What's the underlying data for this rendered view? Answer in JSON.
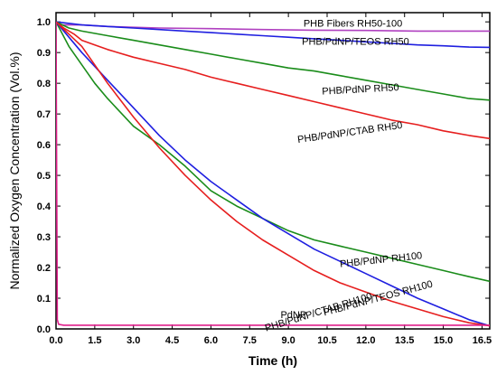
{
  "chart_data": {
    "type": "line",
    "xlabel": "Time (h)",
    "ylabel": "Normalized Oxygen Concentration (Vol.%)",
    "xlim": [
      0,
      16.8
    ],
    "ylim": [
      0,
      1.03
    ],
    "xticks": [
      0,
      1.5,
      3,
      4.5,
      6,
      7.5,
      9,
      10.5,
      12,
      13.5,
      15,
      16.5
    ],
    "xtick_labels": [
      "0.0",
      "1.5",
      "3.0",
      "4.5",
      "6.0",
      "7.5",
      "9.0",
      "10.5",
      "12.0",
      "13.5",
      "15.0",
      "16.5"
    ],
    "yticks": [
      0,
      0.1,
      0.2,
      0.3,
      0.4,
      0.5,
      0.6,
      0.7,
      0.8,
      0.9,
      1.0
    ],
    "ytick_labels": [
      "0.0",
      "0.1",
      "0.2",
      "0.3",
      "0.4",
      "0.5",
      "0.6",
      "0.7",
      "0.8",
      "0.9",
      "1.0"
    ],
    "grid": false,
    "series": [
      {
        "name": "PHB Fibers RH50-100",
        "color": "#b040c0",
        "x": [
          0,
          1,
          2,
          4,
          6,
          8,
          10,
          12,
          14,
          16.8
        ],
        "y": [
          0.99,
          0.99,
          0.985,
          0.98,
          0.978,
          0.975,
          0.973,
          0.972,
          0.97,
          0.97
        ]
      },
      {
        "name": "PHB/PdNP/TEOS RH50",
        "color": "#1f1fe0",
        "x": [
          0,
          1,
          2,
          3,
          4,
          5,
          6,
          7,
          8,
          9,
          10,
          11,
          12,
          13,
          14,
          15,
          16,
          16.8
        ],
        "y": [
          1.0,
          0.99,
          0.985,
          0.98,
          0.975,
          0.97,
          0.965,
          0.96,
          0.955,
          0.95,
          0.945,
          0.94,
          0.935,
          0.93,
          0.925,
          0.922,
          0.918,
          0.917
        ]
      },
      {
        "name": "PHB/PdNP RH50",
        "color": "#1a8c1a",
        "x": [
          0,
          0.5,
          1,
          2,
          3,
          4,
          5,
          6,
          7,
          8,
          9,
          10,
          11,
          12,
          13,
          14,
          15,
          16,
          16.8
        ],
        "y": [
          1.0,
          0.98,
          0.97,
          0.955,
          0.94,
          0.925,
          0.91,
          0.895,
          0.88,
          0.865,
          0.85,
          0.84,
          0.825,
          0.81,
          0.795,
          0.78,
          0.765,
          0.75,
          0.745
        ]
      },
      {
        "name": "PHB/PdNP/CTAB RH50",
        "color": "#e61e1e",
        "x": [
          0,
          0.3,
          0.7,
          1,
          1.5,
          2,
          3,
          4,
          5,
          6,
          7,
          8,
          9,
          10,
          11,
          12,
          13,
          14,
          15,
          16,
          16.8
        ],
        "y": [
          1.0,
          0.98,
          0.96,
          0.94,
          0.925,
          0.91,
          0.885,
          0.865,
          0.845,
          0.82,
          0.8,
          0.78,
          0.76,
          0.74,
          0.72,
          0.7,
          0.68,
          0.665,
          0.645,
          0.63,
          0.62
        ]
      },
      {
        "name": "PHB/PdNP RH100",
        "color": "#1a8c1a",
        "x": [
          0,
          0.5,
          1,
          1.5,
          2,
          3,
          4,
          5,
          6,
          7,
          8,
          9,
          10,
          11,
          12,
          13,
          14,
          15,
          16,
          16.8
        ],
        "y": [
          1.0,
          0.92,
          0.86,
          0.8,
          0.75,
          0.66,
          0.6,
          0.53,
          0.45,
          0.4,
          0.36,
          0.32,
          0.29,
          0.27,
          0.25,
          0.23,
          0.21,
          0.19,
          0.17,
          0.155
        ]
      },
      {
        "name": "PHB/PdNP/TEOS RH100",
        "color": "#1f1fe0",
        "x": [
          0,
          0.5,
          1,
          2,
          3,
          4,
          5,
          6,
          7,
          8,
          9,
          10,
          11,
          12,
          13,
          14,
          15,
          16,
          16.8
        ],
        "y": [
          1.0,
          0.95,
          0.9,
          0.81,
          0.72,
          0.63,
          0.55,
          0.48,
          0.42,
          0.36,
          0.31,
          0.26,
          0.22,
          0.18,
          0.14,
          0.1,
          0.065,
          0.03,
          0.01
        ]
      },
      {
        "name": "PHB/PdNP/CTAB RH100",
        "color": "#e61e1e",
        "x": [
          0,
          0.5,
          1,
          2,
          3,
          4,
          5,
          6,
          7,
          8,
          9,
          10,
          11,
          12,
          13,
          14,
          15,
          16,
          16.8
        ],
        "y": [
          1.0,
          0.96,
          0.92,
          0.8,
          0.69,
          0.59,
          0.5,
          0.42,
          0.35,
          0.29,
          0.24,
          0.19,
          0.15,
          0.12,
          0.09,
          0.065,
          0.04,
          0.02,
          0.01
        ]
      },
      {
        "name": "PdNP",
        "color": "#e0208c",
        "x": [
          0,
          0.05,
          0.1,
          0.3,
          1,
          3,
          6,
          9,
          12,
          15,
          16.8
        ],
        "y": [
          1.0,
          0.03,
          0.015,
          0.012,
          0.012,
          0.012,
          0.012,
          0.012,
          0.012,
          0.012,
          0.012
        ]
      }
    ],
    "annotations": [
      {
        "text": "PHB Fibers RH50-100",
        "x": 11.5,
        "y": 0.985,
        "rotate": 0
      },
      {
        "text": "PHB/PdNP/TEOS RH50",
        "x": 11.6,
        "y": 0.925,
        "rotate": 0
      },
      {
        "text": "PHB/PdNP RH50",
        "x": 11.8,
        "y": 0.77,
        "rotate": -3
      },
      {
        "text": "PHB/PdNP/CTAB RH50",
        "x": 11.4,
        "y": 0.63,
        "rotate": -8
      },
      {
        "text": "PHB/PdNP RH100",
        "x": 12.6,
        "y": 0.215,
        "rotate": -6
      },
      {
        "text": "PHB/PdNP/TEOS RH100",
        "x": 12.5,
        "y": 0.09,
        "rotate": -15
      },
      {
        "text": "PHB/PdNP/CTAB RH100",
        "x": 10.2,
        "y": 0.045,
        "rotate": -17
      },
      {
        "text": "PdNP",
        "x": 9.2,
        "y": 0.035,
        "rotate": 0
      }
    ]
  }
}
